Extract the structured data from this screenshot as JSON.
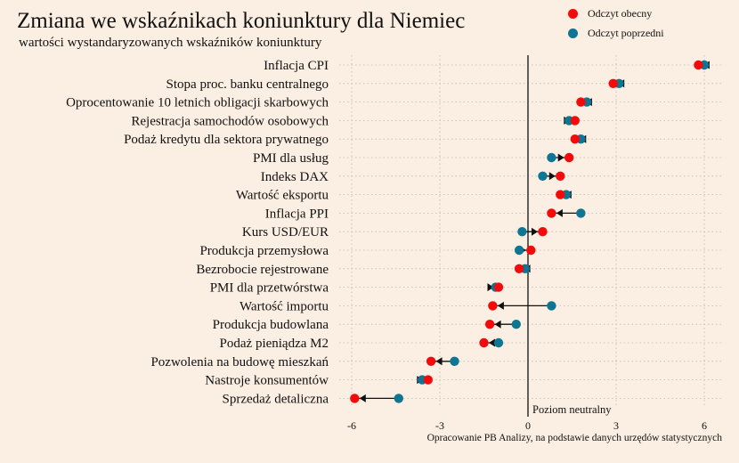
{
  "title": "Zmiana we wskaźnikach koniunktury dla Niemiec",
  "subtitle": "wartości wystandaryzowanych wskaźników koniunktury",
  "source": "Opracowanie PB Analizy, na podstawie danych urzędów statystycznych",
  "legend": {
    "current": "Odczyt obecny",
    "previous": "Odczyt poprzedni"
  },
  "colors": {
    "current": "#F40A0A",
    "previous": "#0E7593",
    "background": "#FBEEE2"
  },
  "chart_data": {
    "type": "scatter",
    "subtype": "dumbbell",
    "xlim": [
      -6.5,
      6.5
    ],
    "xticks": [
      -6,
      -3,
      0,
      3,
      6
    ],
    "xtick_labels": [
      "-6",
      "-3",
      "0",
      "3",
      "6"
    ],
    "neutral_label": "Poziom neutralny",
    "grid": true,
    "legend_position": "top-right",
    "series": [
      {
        "name": "Odczyt obecny",
        "key": "current"
      },
      {
        "name": "Odczyt poprzedni",
        "key": "previous"
      }
    ],
    "categories": [
      "Inflacja CPI",
      "Stopa proc. banku centralnego",
      "Oprocentowanie 10 letnich obligacji skarbowych",
      "Rejestracja samochodów osobowych",
      "Podaż kredytu dla sektora prywatnego",
      "PMI dla usług",
      "Indeks DAX",
      "Wartość eksportu",
      "Inflacja PPI",
      "Kurs USD/EUR",
      "Produkcja przemysłowa",
      "Bezrobocie rejestrowane",
      "PMI dla przetwórstwa",
      "Wartość importu",
      "Produkcja budowlana",
      "Podaż pieniądza M2",
      "Pozwolenia na budowę mieszkań",
      "Nastroje konsumentów",
      "Sprzedaż detaliczna"
    ],
    "current": [
      5.8,
      2.9,
      1.8,
      1.6,
      1.6,
      1.4,
      1.1,
      1.1,
      0.8,
      0.5,
      0.1,
      -0.3,
      -1.0,
      -1.2,
      -1.3,
      -1.5,
      -3.3,
      -3.4,
      -5.9
    ],
    "previous": [
      6.0,
      3.1,
      2.0,
      1.4,
      1.8,
      0.8,
      0.5,
      1.3,
      1.8,
      -0.2,
      -0.3,
      -0.1,
      -1.1,
      0.8,
      -0.4,
      -1.0,
      -2.5,
      -3.6,
      -4.4
    ]
  }
}
